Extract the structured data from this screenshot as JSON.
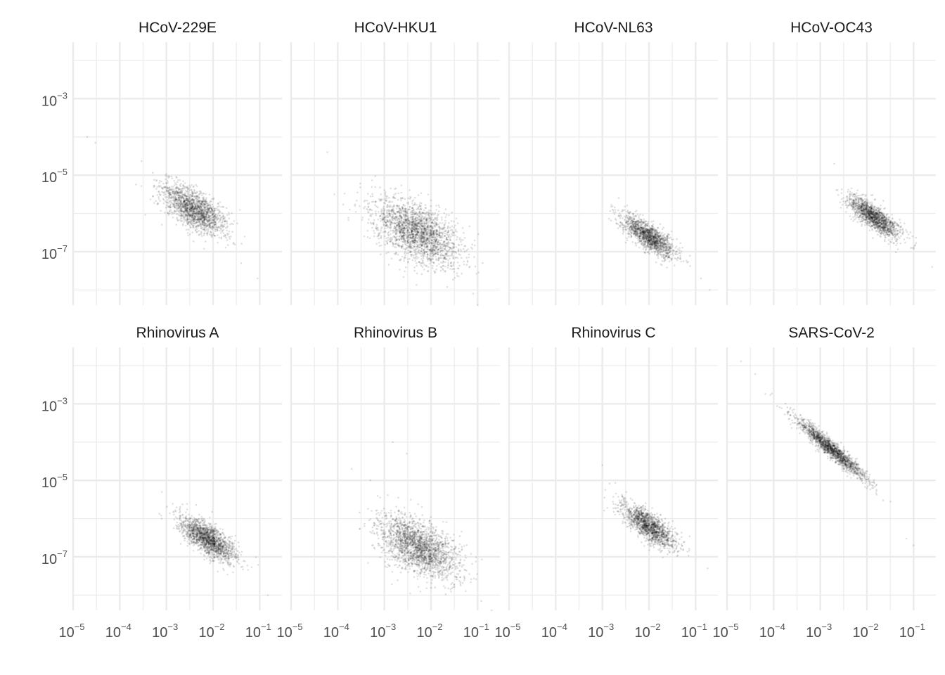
{
  "chart_data": {
    "type": "scatter",
    "layout": {
      "rows": 2,
      "cols": 4
    },
    "x_scale": "log10",
    "y_scale": "log10",
    "xlim": [
      1e-05,
      0.3
    ],
    "ylim": [
      4e-09,
      0.03
    ],
    "grid": true,
    "legend": "none",
    "point_color": "#000000",
    "point_opacity": 0.12,
    "x_ticks": [
      {
        "value": 1e-05,
        "base": "10",
        "exp": "−5"
      },
      {
        "value": 0.0001,
        "base": "10",
        "exp": "−4"
      },
      {
        "value": 0.001,
        "base": "10",
        "exp": "−3"
      },
      {
        "value": 0.01,
        "base": "10",
        "exp": "−2"
      },
      {
        "value": 0.1,
        "base": "10",
        "exp": "−1"
      }
    ],
    "y_ticks": [
      {
        "value": 0.001,
        "base": "10",
        "exp": "−3"
      },
      {
        "value": 1e-05,
        "base": "10",
        "exp": "−5"
      },
      {
        "value": 1e-07,
        "base": "10",
        "exp": "−7"
      }
    ],
    "facets": [
      {
        "name": "HCoV-229E",
        "cluster": {
          "x_center_log10": -2.4,
          "y_center_log10": -5.9,
          "slope": -1.0,
          "spread_along": 0.42,
          "spread_across": 0.2,
          "count": 1700
        },
        "outliers": [
          [
            2e-05,
            0.0001
          ],
          [
            3e-05,
            7e-05
          ],
          [
            0.09,
            2e-08
          ],
          [
            0.04,
            5e-08
          ],
          [
            0.02,
            2e-07
          ]
        ]
      },
      {
        "name": "HCoV-HKU1",
        "cluster": {
          "x_center_log10": -2.3,
          "y_center_log10": -6.5,
          "slope": -0.9,
          "spread_along": 0.55,
          "spread_across": 0.3,
          "count": 2200
        },
        "outliers": [
          [
            6e-05,
            4e-05
          ],
          [
            0.1,
            4e-09
          ],
          [
            0.08,
            8e-09
          ]
        ]
      },
      {
        "name": "HCoV-NL63",
        "cluster": {
          "x_center_log10": -2.0,
          "y_center_log10": -6.6,
          "slope": -0.95,
          "spread_along": 0.36,
          "spread_across": 0.13,
          "count": 1500
        },
        "outliers": [
          [
            0.2,
            1e-08
          ],
          [
            0.13,
            2e-08
          ]
        ]
      },
      {
        "name": "HCoV-OC43",
        "cluster": {
          "x_center_log10": -1.85,
          "y_center_log10": -6.1,
          "slope": -0.95,
          "spread_along": 0.36,
          "spread_across": 0.12,
          "count": 1500
        },
        "outliers": [
          [
            0.002,
            2e-05
          ],
          [
            0.25,
            4e-08
          ]
        ]
      },
      {
        "name": "Rhinovirus A",
        "cluster": {
          "x_center_log10": -2.1,
          "y_center_log10": -6.55,
          "slope": -0.95,
          "spread_along": 0.38,
          "spread_across": 0.15,
          "count": 1700
        },
        "outliers": [
          [
            0.15,
            1e-08
          ],
          [
            0.0008,
            5e-06
          ]
        ]
      },
      {
        "name": "Rhinovirus B",
        "cluster": {
          "x_center_log10": -2.25,
          "y_center_log10": -6.75,
          "slope": -0.9,
          "spread_along": 0.5,
          "spread_across": 0.28,
          "count": 2100
        },
        "outliers": [
          [
            0.0002,
            2e-05
          ],
          [
            0.0005,
            1e-05
          ],
          [
            0.0015,
            0.0001
          ],
          [
            0.003,
            5e-05
          ],
          [
            0.12,
            7e-09
          ],
          [
            0.2,
            4e-09
          ]
        ]
      },
      {
        "name": "Rhinovirus C",
        "cluster": {
          "x_center_log10": -2.0,
          "y_center_log10": -6.2,
          "slope": -1.0,
          "spread_along": 0.38,
          "spread_across": 0.14,
          "count": 1500
        },
        "outliers": [
          [
            0.001,
            2.5e-05
          ],
          [
            0.18,
            5e-08
          ]
        ]
      },
      {
        "name": "SARS-CoV-2",
        "cluster": {
          "x_center_log10": -2.75,
          "y_center_log10": -4.2,
          "slope": -1.05,
          "spread_along": 0.55,
          "spread_across": 0.08,
          "count": 1700
        },
        "outliers": [
          [
            2e-05,
            0.013
          ],
          [
            4e-05,
            0.006
          ],
          [
            0.1,
            2e-07
          ],
          [
            0.07,
            3e-07
          ]
        ]
      }
    ]
  }
}
